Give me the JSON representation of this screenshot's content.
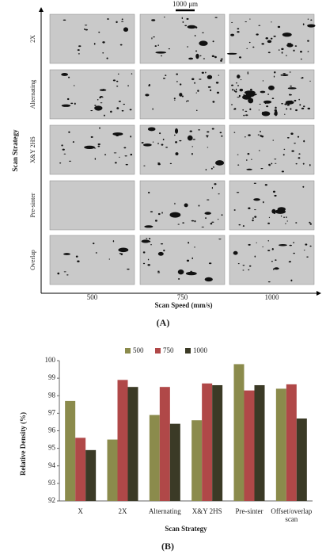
{
  "micrographs": {
    "scale_bar": "1000 μm",
    "y_label": "Scan Strategy",
    "rows": [
      "2X",
      "Alternating",
      "X&Y 2HS",
      "Pre-sinter",
      "Overlap"
    ],
    "columns": [
      "500",
      "750",
      "1000"
    ],
    "x_label": "Scan Speed (mm/s)",
    "panel_label": "(A)"
  },
  "chart_data": {
    "type": "bar",
    "panel_label": "(B)",
    "y_label": "Relative Density (%)",
    "x_label": "Scan Strategy",
    "categories": [
      "X",
      "2X",
      "Alternating",
      "X&Y 2HS",
      "Pre-sinter",
      "Offset/overlap scan"
    ],
    "series": [
      {
        "name": "500",
        "color": "#8b8b4c",
        "values": [
          97.7,
          95.5,
          96.9,
          96.6,
          99.8,
          98.4
        ]
      },
      {
        "name": "750",
        "color": "#b04848",
        "values": [
          95.6,
          98.9,
          98.5,
          98.7,
          98.3,
          98.65
        ]
      },
      {
        "name": "1000",
        "color": "#3b3a26",
        "values": [
          94.9,
          98.5,
          96.4,
          98.6,
          98.6,
          96.7
        ]
      }
    ],
    "ylim": [
      92,
      100
    ],
    "yticks": [
      92,
      93,
      94,
      95,
      96,
      97,
      98,
      99,
      100
    ],
    "grid": false,
    "legend": "top"
  }
}
